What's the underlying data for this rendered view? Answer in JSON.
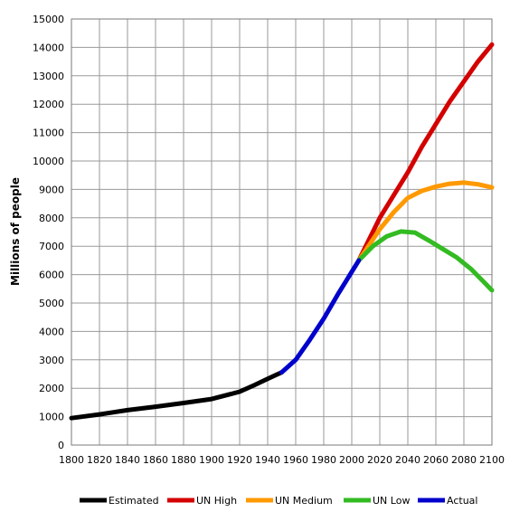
{
  "chart_data": {
    "type": "line",
    "title": "",
    "xlabel": "",
    "ylabel": "Millions of people",
    "xlim": [
      1800,
      2100
    ],
    "ylim": [
      0,
      15000
    ],
    "x_ticks": [
      1800,
      1820,
      1840,
      1860,
      1880,
      1900,
      1920,
      1940,
      1960,
      1980,
      2000,
      2020,
      2040,
      2060,
      2080,
      2100
    ],
    "y_ticks": [
      0,
      1000,
      2000,
      3000,
      4000,
      5000,
      6000,
      7000,
      8000,
      9000,
      10000,
      11000,
      12000,
      13000,
      14000,
      15000
    ],
    "grid": true,
    "legend_position": "bottom",
    "series": [
      {
        "name": "Estimated",
        "color": "#000000",
        "points": [
          [
            1800,
            950
          ],
          [
            1820,
            1080
          ],
          [
            1840,
            1230
          ],
          [
            1860,
            1350
          ],
          [
            1880,
            1480
          ],
          [
            1900,
            1620
          ],
          [
            1910,
            1750
          ],
          [
            1920,
            1880
          ],
          [
            1930,
            2100
          ],
          [
            1940,
            2330
          ],
          [
            1950,
            2560
          ]
        ]
      },
      {
        "name": "UN High",
        "color": "#d40000",
        "points": [
          [
            2005,
            6500
          ],
          [
            2020,
            8000
          ],
          [
            2040,
            9600
          ],
          [
            2050,
            10500
          ],
          [
            2060,
            11300
          ],
          [
            2070,
            12100
          ],
          [
            2080,
            12800
          ],
          [
            2090,
            13500
          ],
          [
            2100,
            14100
          ]
        ]
      },
      {
        "name": "UN Medium",
        "color": "#ff9900",
        "points": [
          [
            2005,
            6500
          ],
          [
            2020,
            7600
          ],
          [
            2030,
            8200
          ],
          [
            2040,
            8700
          ],
          [
            2050,
            8950
          ],
          [
            2060,
            9100
          ],
          [
            2070,
            9200
          ],
          [
            2080,
            9240
          ],
          [
            2090,
            9180
          ],
          [
            2100,
            9070
          ]
        ]
      },
      {
        "name": "UN Low",
        "color": "#33bb22",
        "points": [
          [
            2005,
            6500
          ],
          [
            2015,
            7000
          ],
          [
            2025,
            7350
          ],
          [
            2035,
            7520
          ],
          [
            2045,
            7480
          ],
          [
            2055,
            7200
          ],
          [
            2065,
            6900
          ],
          [
            2075,
            6600
          ],
          [
            2085,
            6200
          ],
          [
            2095,
            5700
          ],
          [
            2100,
            5450
          ]
        ]
      },
      {
        "name": "Actual",
        "color": "#0000cc",
        "points": [
          [
            1950,
            2560
          ],
          [
            1960,
            3000
          ],
          [
            1970,
            3700
          ],
          [
            1980,
            4450
          ],
          [
            1990,
            5300
          ],
          [
            2000,
            6100
          ],
          [
            2005,
            6500
          ]
        ]
      }
    ]
  }
}
